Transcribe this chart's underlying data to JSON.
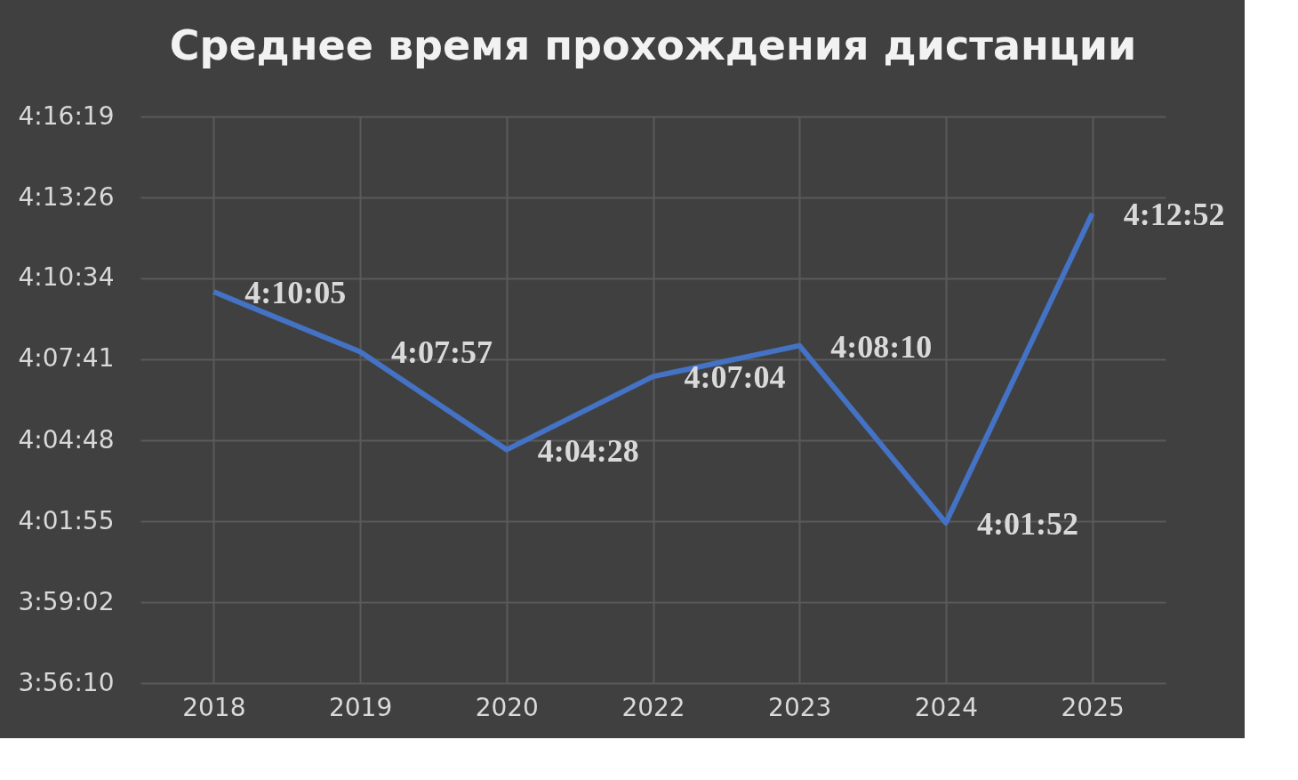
{
  "chart_data": {
    "type": "line",
    "title": "Среднее время прохождения дистанции",
    "categories": [
      "2018",
      "2019",
      "2020",
      "2022",
      "2023",
      "2024",
      "2025"
    ],
    "series": [
      {
        "color": "#4472c4",
        "values": [
          4.168056,
          4.1325,
          4.074444,
          4.117778,
          4.136111,
          4.031111,
          4.214444
        ],
        "value_labels": [
          "4:10:05",
          "4:07:57",
          "4:04:28",
          "4:07:04",
          "4:08:10",
          "4:01:52",
          "4:12:52"
        ]
      }
    ],
    "ylim": [
      3.936111,
      4.271944
    ],
    "yticks": [
      {
        "value": 3.936111,
        "label": "3:56:10"
      },
      {
        "value": 3.983889,
        "label": "3:59:02"
      },
      {
        "value": 4.031944,
        "label": "4:01:55"
      },
      {
        "value": 4.08,
        "label": "4:04:48"
      },
      {
        "value": 4.128056,
        "label": "4:07:41"
      },
      {
        "value": 4.176111,
        "label": "4:10:34"
      },
      {
        "value": 4.223889,
        "label": "4:13:26"
      },
      {
        "value": 4.271944,
        "label": "4:16:19"
      }
    ],
    "grid": true,
    "marker": "none",
    "line_style": "solid"
  }
}
